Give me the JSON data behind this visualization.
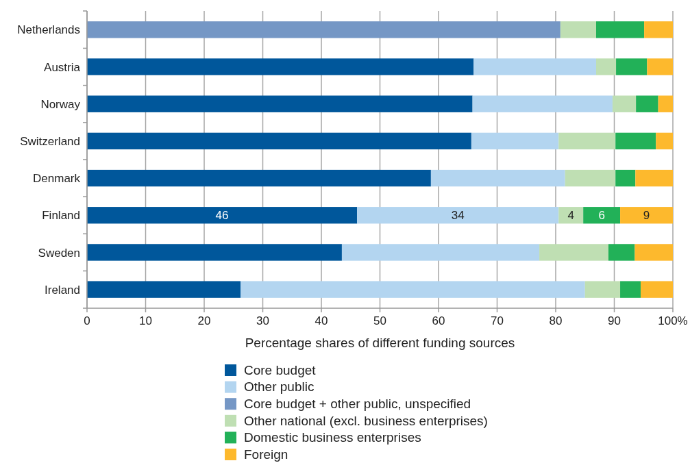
{
  "chart_data": {
    "type": "bar",
    "orientation": "horizontal",
    "stacked": true,
    "xlabel": "Percentage shares of different funding sources",
    "categories": [
      "Netherlands",
      "Austria",
      "Norway",
      "Switzerland",
      "Denmark",
      "Finland",
      "Sweden",
      "Ireland"
    ],
    "series": [
      {
        "name": "Core budget",
        "color": "#00579b",
        "values": [
          null,
          66.0,
          65.8,
          65.6,
          58.7,
          46.1,
          43.5,
          26.2
        ],
        "value_labels": [
          null,
          null,
          null,
          null,
          null,
          "46",
          null,
          null
        ]
      },
      {
        "name": "Other public",
        "color": "#b3d5f0",
        "values": [
          null,
          20.9,
          23.9,
          14.9,
          22.9,
          34.4,
          33.7,
          58.8
        ],
        "value_labels": [
          null,
          null,
          null,
          null,
          null,
          "34",
          null,
          null
        ]
      },
      {
        "name": "Core budget + other public, unspecified",
        "color": "#7597c5",
        "values": [
          80.8,
          null,
          null,
          null,
          null,
          null,
          null,
          null
        ]
      },
      {
        "name": "Other national (excl. business enterprises)",
        "color": "#bfdfb3",
        "values": [
          6.1,
          3.4,
          4.0,
          9.7,
          8.6,
          4.2,
          11.8,
          6.0
        ],
        "value_labels": [
          null,
          null,
          null,
          null,
          null,
          "4",
          null,
          null
        ]
      },
      {
        "name": "Domestic business enterprises",
        "color": "#22b158",
        "values": [
          8.2,
          5.3,
          3.8,
          6.9,
          3.4,
          6.3,
          4.5,
          3.5
        ],
        "value_labels": [
          null,
          null,
          null,
          null,
          null,
          "6",
          null,
          null
        ]
      },
      {
        "name": "Foreign",
        "color": "#fdb92d",
        "values": [
          4.9,
          4.4,
          2.5,
          2.9,
          6.4,
          9.0,
          6.5,
          5.5
        ],
        "value_labels": [
          null,
          null,
          null,
          null,
          null,
          "9",
          null,
          null
        ]
      }
    ],
    "xlim": [
      0,
      100
    ],
    "xticks": [
      0,
      10,
      20,
      30,
      40,
      50,
      60,
      70,
      80,
      90,
      {
        "value": 100,
        "label": "100%"
      }
    ],
    "grid": "x",
    "legend": "bottom"
  }
}
